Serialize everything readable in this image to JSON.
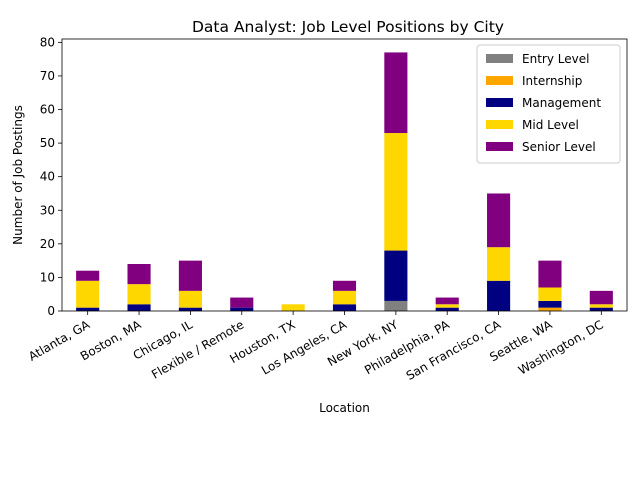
{
  "chart_data": {
    "type": "bar",
    "stacked": true,
    "title": "Data Analyst: Job Level Positions by City",
    "xlabel": "Location",
    "ylabel": "Number of Job Postings",
    "ylim": [
      0,
      81
    ],
    "yticks": [
      0,
      10,
      20,
      30,
      40,
      50,
      60,
      70,
      80
    ],
    "grid": false,
    "legend_position": "top-right",
    "categories": [
      "Atlanta, GA",
      "Boston, MA",
      "Chicago, IL",
      "Flexible / Remote",
      "Houston, TX",
      "Los Angeles, CA",
      "New York, NY",
      "Philadelphia, PA",
      "San Francisco, CA",
      "Seattle, WA",
      "Washington, DC"
    ],
    "series": [
      {
        "name": "Entry Level",
        "color": "#808080",
        "values": [
          0,
          0,
          0,
          0,
          0,
          0,
          3,
          0,
          0,
          0,
          0
        ]
      },
      {
        "name": "Internship",
        "color": "#ffa500",
        "values": [
          0,
          0,
          0,
          0,
          0,
          0,
          0,
          0,
          0,
          1,
          0
        ]
      },
      {
        "name": "Management",
        "color": "#000080",
        "values": [
          1,
          2,
          1,
          1,
          0,
          2,
          15,
          1,
          9,
          2,
          1
        ]
      },
      {
        "name": "Mid Level",
        "color": "#ffd700",
        "values": [
          8,
          6,
          5,
          0,
          2,
          4,
          35,
          1,
          10,
          4,
          1
        ]
      },
      {
        "name": "Senior Level",
        "color": "#800080",
        "values": [
          3,
          6,
          9,
          3,
          0,
          3,
          24,
          2,
          16,
          8,
          4
        ]
      }
    ]
  }
}
